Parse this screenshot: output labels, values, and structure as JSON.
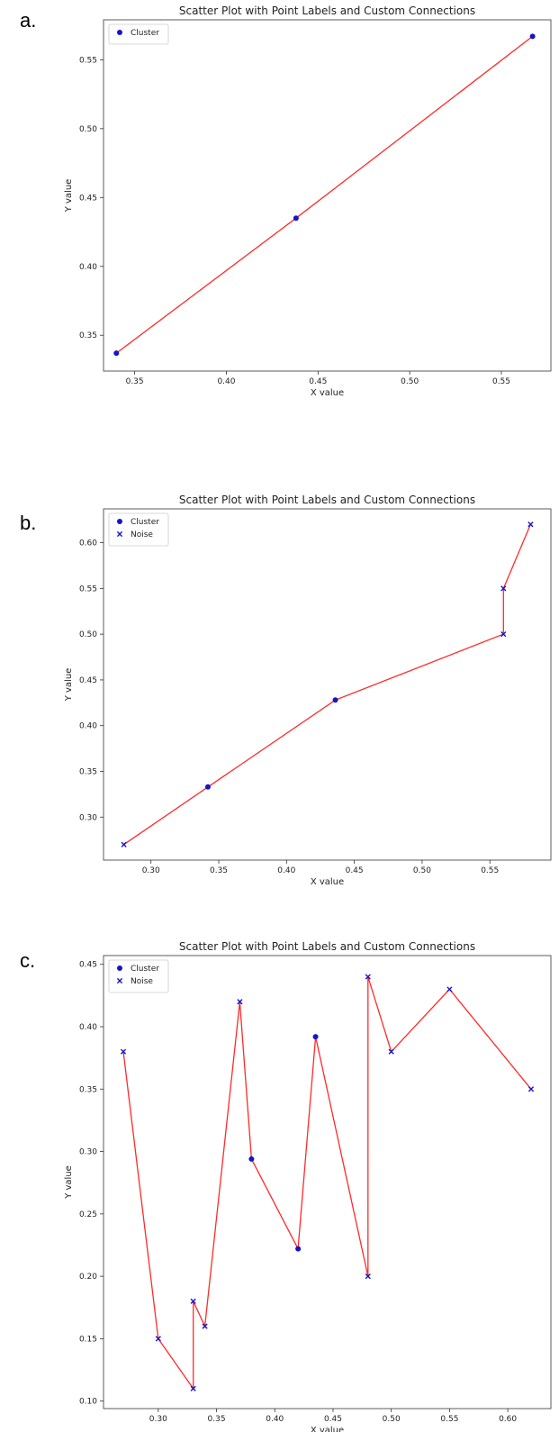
{
  "panels": [
    {
      "letter": "a."
    },
    {
      "letter": "b."
    },
    {
      "letter": "c."
    }
  ],
  "colors": {
    "line": "#ff2a2a",
    "marker": "#1515c8",
    "frame": "#333333"
  },
  "chart_data": [
    {
      "type": "scatter",
      "title": "Scatter Plot with Point Labels and Custom Connections",
      "xlabel": "X value",
      "ylabel": "Y value",
      "xlim": [
        0.333,
        0.577
      ],
      "ylim": [
        0.324,
        0.579
      ],
      "xticks": [
        "0.35",
        "0.40",
        "0.45",
        "0.50",
        "0.55"
      ],
      "xtick_values": [
        0.35,
        0.4,
        0.45,
        0.5,
        0.55
      ],
      "yticks": [
        "0.35",
        "0.40",
        "0.45",
        "0.50",
        "0.55"
      ],
      "ytick_values": [
        0.35,
        0.4,
        0.45,
        0.5,
        0.55
      ],
      "grid": false,
      "legend_position": "top-left",
      "legend": [
        {
          "name": "Cluster",
          "marker": "circle"
        }
      ],
      "connection_order": [
        [
          0.34,
          0.337
        ],
        [
          0.438,
          0.435
        ],
        [
          0.567,
          0.567
        ]
      ],
      "series": [
        {
          "name": "Cluster",
          "marker": "circle",
          "points": [
            [
              0.34,
              0.337
            ],
            [
              0.438,
              0.435
            ],
            [
              0.567,
              0.567
            ]
          ]
        }
      ]
    },
    {
      "type": "scatter",
      "title": "Scatter Plot with Point Labels and Custom Connections",
      "xlabel": "X value",
      "ylabel": "Y value",
      "xlim": [
        0.265,
        0.595
      ],
      "ylim": [
        0.253,
        0.637
      ],
      "xticks": [
        "0.30",
        "0.35",
        "0.40",
        "0.45",
        "0.50",
        "0.55"
      ],
      "xtick_values": [
        0.3,
        0.35,
        0.4,
        0.45,
        0.5,
        0.55
      ],
      "yticks": [
        "0.30",
        "0.35",
        "0.40",
        "0.45",
        "0.50",
        "0.55",
        "0.60"
      ],
      "ytick_values": [
        0.3,
        0.35,
        0.4,
        0.45,
        0.5,
        0.55,
        0.6
      ],
      "grid": false,
      "legend_position": "top-left",
      "legend": [
        {
          "name": "Cluster",
          "marker": "circle"
        },
        {
          "name": "Noise",
          "marker": "x"
        }
      ],
      "connection_order": [
        [
          0.28,
          0.27
        ],
        [
          0.342,
          0.333
        ],
        [
          0.436,
          0.428
        ],
        [
          0.56,
          0.5
        ],
        [
          0.56,
          0.55
        ],
        [
          0.58,
          0.62
        ]
      ],
      "series": [
        {
          "name": "Cluster",
          "marker": "circle",
          "points": [
            [
              0.342,
              0.333
            ],
            [
              0.436,
              0.428
            ]
          ]
        },
        {
          "name": "Noise",
          "marker": "x",
          "points": [
            [
              0.28,
              0.27
            ],
            [
              0.56,
              0.5
            ],
            [
              0.56,
              0.55
            ],
            [
              0.58,
              0.62
            ]
          ]
        }
      ]
    },
    {
      "type": "scatter",
      "title": "Scatter Plot with Point Labels and Custom Connections",
      "xlabel": "X value",
      "ylabel": "Y value",
      "xlim": [
        0.253,
        0.637
      ],
      "ylim": [
        0.094,
        0.457
      ],
      "xticks": [
        "0.30",
        "0.35",
        "0.40",
        "0.45",
        "0.50",
        "0.55",
        "0.60"
      ],
      "xtick_values": [
        0.3,
        0.35,
        0.4,
        0.45,
        0.5,
        0.55,
        0.6
      ],
      "yticks": [
        "0.10",
        "0.15",
        "0.20",
        "0.25",
        "0.30",
        "0.35",
        "0.40",
        "0.45"
      ],
      "ytick_values": [
        0.1,
        0.15,
        0.2,
        0.25,
        0.3,
        0.35,
        0.4,
        0.45
      ],
      "grid": false,
      "legend_position": "top-left",
      "legend": [
        {
          "name": "Cluster",
          "marker": "circle"
        },
        {
          "name": "Noise",
          "marker": "x"
        }
      ],
      "connection_order": [
        [
          0.27,
          0.38
        ],
        [
          0.3,
          0.15
        ],
        [
          0.33,
          0.11
        ],
        [
          0.33,
          0.18
        ],
        [
          0.34,
          0.16
        ],
        [
          0.37,
          0.42
        ],
        [
          0.38,
          0.294
        ],
        [
          0.42,
          0.222
        ],
        [
          0.435,
          0.392
        ],
        [
          0.48,
          0.2
        ],
        [
          0.48,
          0.44
        ],
        [
          0.5,
          0.38
        ],
        [
          0.55,
          0.43
        ],
        [
          0.62,
          0.35
        ]
      ],
      "series": [
        {
          "name": "Cluster",
          "marker": "circle",
          "points": [
            [
              0.38,
              0.294
            ],
            [
              0.42,
              0.222
            ],
            [
              0.435,
              0.392
            ]
          ]
        },
        {
          "name": "Noise",
          "marker": "x",
          "points": [
            [
              0.27,
              0.38
            ],
            [
              0.3,
              0.15
            ],
            [
              0.33,
              0.11
            ],
            [
              0.33,
              0.18
            ],
            [
              0.34,
              0.16
            ],
            [
              0.37,
              0.42
            ],
            [
              0.48,
              0.2
            ],
            [
              0.48,
              0.44
            ],
            [
              0.5,
              0.38
            ],
            [
              0.55,
              0.43
            ],
            [
              0.62,
              0.35
            ]
          ]
        }
      ]
    }
  ]
}
